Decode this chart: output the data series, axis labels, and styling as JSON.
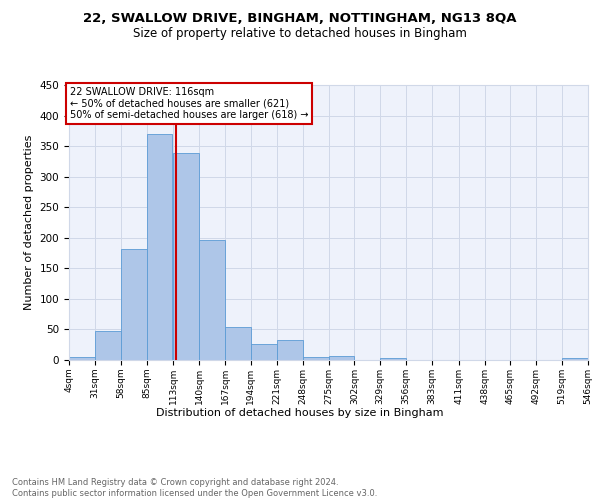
{
  "title1": "22, SWALLOW DRIVE, BINGHAM, NOTTINGHAM, NG13 8QA",
  "title2": "Size of property relative to detached houses in Bingham",
  "xlabel": "Distribution of detached houses by size in Bingham",
  "ylabel": "Number of detached properties",
  "annotation_line1": "22 SWALLOW DRIVE: 116sqm",
  "annotation_line2": "← 50% of detached houses are smaller (621)",
  "annotation_line3": "50% of semi-detached houses are larger (618) →",
  "red_line_x": 116,
  "bar_bins": [
    4,
    31,
    58,
    85,
    113,
    140,
    167,
    194,
    221,
    248,
    275,
    302,
    329,
    356,
    383,
    411,
    438,
    465,
    492,
    519,
    546
  ],
  "bar_heights": [
    5,
    47,
    181,
    369,
    338,
    197,
    54,
    26,
    32,
    5,
    6,
    0,
    4,
    0,
    0,
    0,
    0,
    0,
    0,
    4
  ],
  "bar_color": "#aec6e8",
  "bar_edge_color": "#5b9bd5",
  "grid_color": "#d0d8e8",
  "background_color": "#eef2fb",
  "red_line_color": "#cc0000",
  "annotation_box_color": "#ffffff",
  "annotation_box_edge": "#cc0000",
  "footer_text": "Contains HM Land Registry data © Crown copyright and database right 2024.\nContains public sector information licensed under the Open Government Licence v3.0.",
  "ylim": [
    0,
    450
  ],
  "yticks": [
    0,
    50,
    100,
    150,
    200,
    250,
    300,
    350,
    400,
    450
  ],
  "title1_fontsize": 9.5,
  "title2_fontsize": 8.5
}
